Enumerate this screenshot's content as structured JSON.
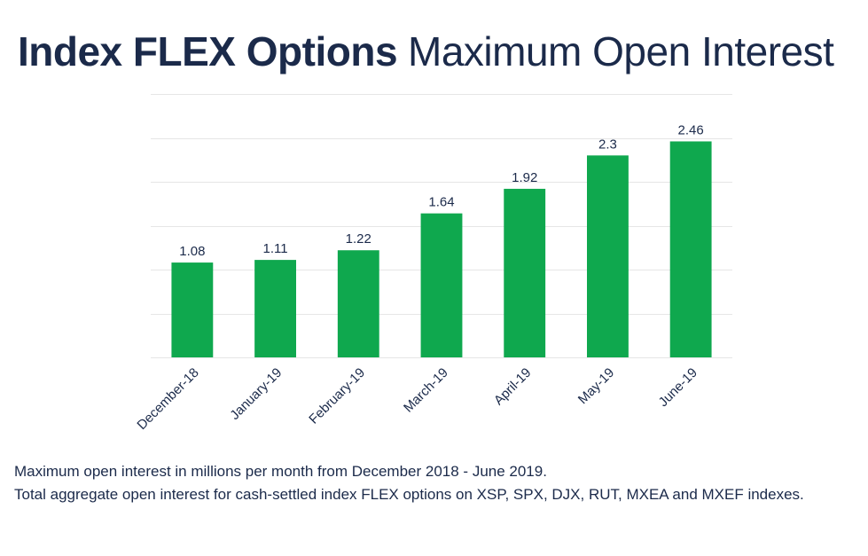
{
  "title": {
    "bold": "Index FLEX Options",
    "light": "Maximum Open Interest"
  },
  "caption": {
    "line1": "Maximum open interest in millions per month from December 2018 - June 2019.",
    "line2": "Total aggregate open interest for cash-settled index FLEX options on XSP, SPX, DJX, RUT, MXEA and MXEF indexes."
  },
  "colors": {
    "bar": "#0fa84e",
    "gridline": "#e6e6e6",
    "text": "#1b2a4a"
  },
  "chart_data": {
    "type": "bar",
    "categories": [
      "December-18",
      "January-19",
      "February-19",
      "March-19",
      "April-19",
      "May-19",
      "June-19"
    ],
    "values": [
      1.08,
      1.11,
      1.22,
      1.64,
      1.92,
      2.3,
      2.46
    ],
    "data_labels": [
      "1.08",
      "1.11",
      "1.22",
      "1.64",
      "1.92",
      "2.3",
      "2.46"
    ],
    "xlabel": "",
    "ylabel": "",
    "ylim": [
      0,
      3
    ],
    "grid": true,
    "y_tick_labels_shown": false,
    "legend": "none"
  }
}
